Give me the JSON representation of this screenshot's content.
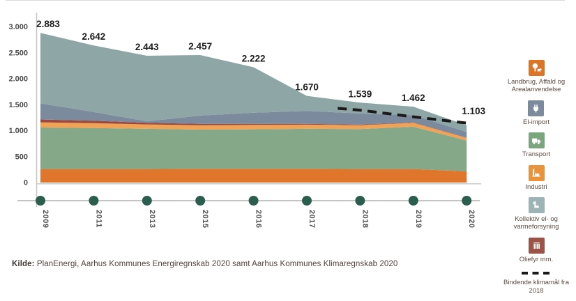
{
  "source": {
    "label": "Kilde:",
    "text": " PlanEnergi, Aarhus Kommunes Energiregnskab 2020 samt Aarhus Kommunes Klimaregnskab 2020"
  },
  "legend": {
    "items": [
      {
        "label": "Landbrug, Affald og Arealanvendelse",
        "icon": "tree-livestock-icon",
        "color": "#dd7527"
      },
      {
        "label": "El-import",
        "icon": "plug-icon",
        "color": "#7c8a9d"
      },
      {
        "label": "Transport",
        "icon": "truck-icon",
        "color": "#7ba57d"
      },
      {
        "label": "Industri",
        "icon": "factory-icon",
        "color": "#e9943c"
      },
      {
        "label": "Kollektiv el- og varmeforsyning",
        "icon": "power-plant-icon",
        "color": "#9db4b6"
      },
      {
        "label": "Oliefyr mm.",
        "icon": "radiator-icon",
        "color": "#9c5348"
      },
      {
        "label": "Bindende klimamål fra 2018",
        "icon": "dashed-line-icon",
        "color": "#1a1a1a"
      }
    ]
  },
  "chart_data": {
    "type": "area",
    "stacked": true,
    "title": "",
    "categories": [
      "2009",
      "2011",
      "2013",
      "2015",
      "2016",
      "2017",
      "2018",
      "2019",
      "2020"
    ],
    "series": [
      {
        "name": "Landbrug, Affald og Arealanvendelse",
        "color": "#e0762c",
        "values": [
          260,
          260,
          260,
          265,
          265,
          265,
          260,
          260,
          215
        ]
      },
      {
        "name": "Transport",
        "color": "#84a888",
        "values": [
          800,
          790,
          775,
          755,
          760,
          770,
          770,
          815,
          595
        ]
      },
      {
        "name": "Industri",
        "color": "#f0a256",
        "values": [
          100,
          95,
          85,
          85,
          85,
          80,
          75,
          75,
          50
        ]
      },
      {
        "name": "Oliefyr mm.",
        "color": "#9a493c",
        "values": [
          55,
          45,
          30,
          25,
          20,
          15,
          10,
          8,
          5
        ]
      },
      {
        "name": "El-import",
        "color": "#7c8a9d",
        "values": [
          310,
          170,
          30,
          160,
          215,
          250,
          215,
          142,
          110
        ]
      },
      {
        "name": "Kollektiv el- og varmeforsyning",
        "color": "#8fa6a7",
        "values": [
          1358,
          1282,
          1263,
          1167,
          877,
          290,
          209,
          162,
          128
        ]
      }
    ],
    "totals": [
      2883,
      2642,
      2443,
      2457,
      2222,
      1670,
      1539,
      1462,
      1103
    ],
    "total_labels": [
      "2.883",
      "2.642",
      "2.443",
      "2.457",
      "2.222",
      "1.670",
      "1.539",
      "1.462",
      "1.103"
    ],
    "y_ticks": {
      "labels": [
        "3.000",
        "2.500",
        "2.000",
        "1.500",
        "1.000",
        "500",
        "0"
      ],
      "values": [
        3000,
        2500,
        2000,
        1500,
        1000,
        500,
        0
      ]
    },
    "ylim": [
      0,
      3000
    ],
    "target_line": {
      "label": "Bindende klimamål fra 2018",
      "points": [
        {
          "x": 5.58,
          "value": 1430
        },
        {
          "x": 6.0,
          "value": 1395
        },
        {
          "x": 7.0,
          "value": 1267
        },
        {
          "x": 8.08,
          "value": 1135
        }
      ]
    },
    "legend_position": "right",
    "grid": false,
    "axis_color": "#c8c6c3",
    "timeline_color": "#b3b1ae",
    "dot_color": "#2c5e4f",
    "label_color": "#1c1c1c",
    "tick_color": "#4a4a4a"
  }
}
